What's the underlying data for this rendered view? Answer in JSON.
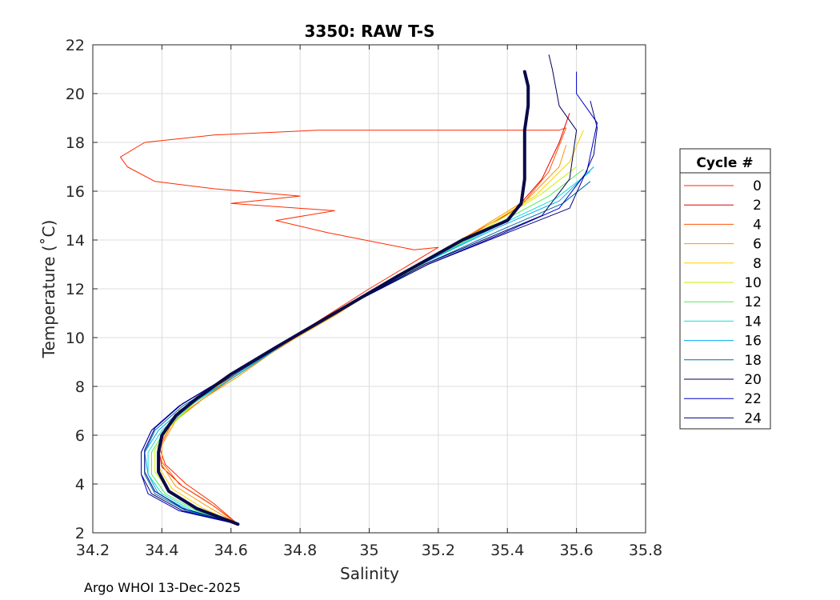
{
  "chart_data": {
    "type": "line",
    "title": "3350: RAW T-S",
    "xlabel": "Salinity",
    "ylabel": "Temperature (˚C)",
    "xlim": [
      34.2,
      35.8
    ],
    "ylim": [
      2,
      22
    ],
    "xticks": [
      "34.2",
      "34.4",
      "34.6",
      "34.8",
      "35",
      "35.2",
      "35.4",
      "35.6",
      "35.8"
    ],
    "yticks": [
      "2",
      "4",
      "6",
      "8",
      "10",
      "12",
      "14",
      "16",
      "18",
      "20",
      "22"
    ],
    "grid": true,
    "legend_title": "Cycle #",
    "legend_position": "right outside",
    "series": [
      {
        "name": "0",
        "color": "#ff2a00",
        "points": [
          [
            34.62,
            2.35
          ],
          [
            34.55,
            3.2
          ],
          [
            34.47,
            4.0
          ],
          [
            34.41,
            4.8
          ],
          [
            34.39,
            5.6
          ],
          [
            34.41,
            6.3
          ],
          [
            34.45,
            7.0
          ],
          [
            34.55,
            8.0
          ],
          [
            34.66,
            9.0
          ],
          [
            34.8,
            10.2
          ],
          [
            35.0,
            12.0
          ],
          [
            35.2,
            13.7
          ],
          [
            35.13,
            13.6
          ],
          [
            34.88,
            14.3
          ],
          [
            34.73,
            14.8
          ],
          [
            34.9,
            15.2
          ],
          [
            34.6,
            15.5
          ],
          [
            34.8,
            15.8
          ],
          [
            34.55,
            16.1
          ],
          [
            34.38,
            16.4
          ],
          [
            34.3,
            17.0
          ],
          [
            34.28,
            17.4
          ],
          [
            34.35,
            18.0
          ],
          [
            34.55,
            18.3
          ],
          [
            34.85,
            18.5
          ],
          [
            35.55,
            18.5
          ],
          [
            35.57,
            18.6
          ]
        ]
      },
      {
        "name": "2",
        "color": "#e60000",
        "points": [
          [
            34.62,
            2.35
          ],
          [
            34.55,
            3.1
          ],
          [
            34.46,
            3.9
          ],
          [
            34.4,
            4.7
          ],
          [
            34.39,
            5.5
          ],
          [
            34.42,
            6.4
          ],
          [
            34.47,
            7.1
          ],
          [
            34.57,
            8.1
          ],
          [
            34.7,
            9.3
          ],
          [
            34.85,
            10.6
          ],
          [
            35.05,
            12.3
          ],
          [
            35.25,
            13.9
          ],
          [
            35.42,
            15.2
          ],
          [
            35.5,
            16.5
          ],
          [
            35.55,
            18.0
          ],
          [
            35.58,
            19.2
          ]
        ]
      },
      {
        "name": "4",
        "color": "#ff5500",
        "points": [
          [
            34.62,
            2.35
          ],
          [
            34.54,
            3.2
          ],
          [
            34.45,
            4.0
          ],
          [
            34.4,
            4.9
          ],
          [
            34.4,
            5.7
          ],
          [
            34.43,
            6.5
          ],
          [
            34.5,
            7.3
          ],
          [
            34.6,
            8.3
          ],
          [
            34.72,
            9.4
          ],
          [
            34.88,
            10.8
          ],
          [
            35.08,
            12.5
          ],
          [
            35.28,
            14.1
          ],
          [
            35.44,
            15.4
          ],
          [
            35.52,
            16.8
          ],
          [
            35.57,
            18.6
          ]
        ]
      },
      {
        "name": "6",
        "color": "#ff9500",
        "points": [
          [
            34.62,
            2.35
          ],
          [
            34.53,
            3.1
          ],
          [
            34.44,
            3.9
          ],
          [
            34.4,
            4.8
          ],
          [
            34.4,
            5.6
          ],
          [
            34.44,
            6.6
          ],
          [
            34.52,
            7.5
          ],
          [
            34.62,
            8.4
          ],
          [
            34.74,
            9.6
          ],
          [
            34.9,
            10.9
          ],
          [
            35.1,
            12.7
          ],
          [
            35.3,
            14.3
          ],
          [
            35.46,
            15.7
          ],
          [
            35.55,
            17.0
          ],
          [
            35.57,
            17.9
          ]
        ]
      },
      {
        "name": "8",
        "color": "#ffd000",
        "points": [
          [
            34.62,
            2.35
          ],
          [
            34.52,
            3.0
          ],
          [
            34.43,
            3.8
          ],
          [
            34.39,
            4.7
          ],
          [
            34.39,
            5.5
          ],
          [
            34.42,
            6.5
          ],
          [
            34.5,
            7.5
          ],
          [
            34.62,
            8.5
          ],
          [
            34.75,
            9.7
          ],
          [
            34.92,
            11.1
          ],
          [
            35.12,
            12.8
          ],
          [
            35.32,
            14.4
          ],
          [
            35.48,
            15.8
          ],
          [
            35.58,
            17.2
          ],
          [
            35.62,
            18.5
          ]
        ]
      },
      {
        "name": "10",
        "color": "#c8f000",
        "points": [
          [
            34.62,
            2.35
          ],
          [
            34.5,
            3.0
          ],
          [
            34.42,
            3.7
          ],
          [
            34.38,
            4.5
          ],
          [
            34.38,
            5.4
          ],
          [
            34.42,
            6.3
          ],
          [
            34.5,
            7.4
          ],
          [
            34.62,
            8.5
          ],
          [
            34.76,
            9.8
          ],
          [
            34.94,
            11.3
          ],
          [
            35.14,
            12.9
          ],
          [
            35.34,
            14.5
          ],
          [
            35.5,
            15.9
          ],
          [
            35.6,
            17.0
          ]
        ]
      },
      {
        "name": "12",
        "color": "#5ae65a",
        "points": [
          [
            34.62,
            2.35
          ],
          [
            34.5,
            2.9
          ],
          [
            34.41,
            3.6
          ],
          [
            34.37,
            4.4
          ],
          [
            34.37,
            5.3
          ],
          [
            34.41,
            6.2
          ],
          [
            34.49,
            7.3
          ],
          [
            34.61,
            8.4
          ],
          [
            34.76,
            9.8
          ],
          [
            34.94,
            11.3
          ],
          [
            35.14,
            12.9
          ],
          [
            35.35,
            14.5
          ],
          [
            35.52,
            15.8
          ],
          [
            35.62,
            16.9
          ]
        ]
      },
      {
        "name": "14",
        "color": "#10e0d8",
        "points": [
          [
            34.62,
            2.35
          ],
          [
            34.49,
            2.9
          ],
          [
            34.4,
            3.6
          ],
          [
            34.36,
            4.4
          ],
          [
            34.36,
            5.3
          ],
          [
            34.4,
            6.2
          ],
          [
            34.48,
            7.2
          ],
          [
            34.6,
            8.3
          ],
          [
            34.76,
            9.8
          ],
          [
            34.95,
            11.4
          ],
          [
            35.15,
            13.0
          ],
          [
            35.36,
            14.5
          ],
          [
            35.54,
            15.7
          ],
          [
            35.64,
            16.8
          ]
        ]
      },
      {
        "name": "16",
        "color": "#00a8f0",
        "points": [
          [
            34.62,
            2.35
          ],
          [
            34.48,
            2.9
          ],
          [
            34.39,
            3.6
          ],
          [
            34.36,
            4.4
          ],
          [
            34.35,
            5.3
          ],
          [
            34.39,
            6.2
          ],
          [
            34.47,
            7.2
          ],
          [
            34.6,
            8.3
          ],
          [
            34.76,
            9.8
          ],
          [
            34.95,
            11.4
          ],
          [
            35.15,
            13.0
          ],
          [
            35.37,
            14.5
          ],
          [
            35.55,
            15.6
          ],
          [
            35.65,
            17.0
          ]
        ]
      },
      {
        "name": "18",
        "color": "#006aa8",
        "points": [
          [
            34.62,
            2.35
          ],
          [
            34.47,
            2.9
          ],
          [
            34.38,
            3.6
          ],
          [
            34.35,
            4.4
          ],
          [
            34.35,
            5.3
          ],
          [
            34.38,
            6.2
          ],
          [
            34.46,
            7.2
          ],
          [
            34.59,
            8.3
          ],
          [
            34.76,
            9.8
          ],
          [
            34.95,
            11.4
          ],
          [
            35.16,
            13.0
          ],
          [
            35.38,
            14.4
          ],
          [
            35.56,
            15.5
          ],
          [
            35.64,
            16.4
          ]
        ]
      },
      {
        "name": "20",
        "color": "#00005a",
        "points": [
          [
            34.62,
            2.35
          ],
          [
            34.46,
            2.9
          ],
          [
            34.37,
            3.6
          ],
          [
            34.34,
            4.4
          ],
          [
            34.34,
            5.3
          ],
          [
            34.37,
            6.2
          ],
          [
            34.45,
            7.2
          ],
          [
            34.58,
            8.3
          ],
          [
            34.76,
            9.8
          ],
          [
            34.95,
            11.4
          ],
          [
            35.16,
            13.0
          ],
          [
            35.38,
            14.3
          ],
          [
            35.5,
            15.0
          ],
          [
            35.58,
            16.5
          ],
          [
            35.6,
            18.5
          ],
          [
            35.55,
            19.5
          ],
          [
            35.53,
            21.0
          ],
          [
            35.52,
            21.6
          ]
        ]
      },
      {
        "name": "22",
        "color": "#0000c8",
        "points": [
          [
            34.62,
            2.35
          ],
          [
            34.45,
            2.9
          ],
          [
            34.36,
            3.6
          ],
          [
            34.34,
            4.4
          ],
          [
            34.34,
            5.3
          ],
          [
            34.37,
            6.2
          ],
          [
            34.45,
            7.2
          ],
          [
            34.58,
            8.3
          ],
          [
            34.76,
            9.8
          ],
          [
            34.95,
            11.4
          ],
          [
            35.17,
            13.0
          ],
          [
            35.39,
            14.3
          ],
          [
            35.55,
            15.3
          ],
          [
            35.63,
            16.8
          ],
          [
            35.66,
            18.8
          ],
          [
            35.6,
            20.0
          ],
          [
            35.6,
            20.9
          ]
        ]
      },
      {
        "name": "24",
        "color": "#000080",
        "points": [
          [
            34.62,
            2.35
          ],
          [
            34.46,
            3.0
          ],
          [
            34.38,
            3.7
          ],
          [
            34.35,
            4.5
          ],
          [
            34.35,
            5.4
          ],
          [
            34.38,
            6.3
          ],
          [
            34.46,
            7.3
          ],
          [
            34.59,
            8.4
          ],
          [
            34.76,
            9.8
          ],
          [
            34.95,
            11.4
          ],
          [
            35.17,
            13.0
          ],
          [
            35.4,
            14.3
          ],
          [
            35.58,
            15.3
          ],
          [
            35.65,
            17.5
          ],
          [
            35.66,
            18.6
          ],
          [
            35.64,
            19.7
          ]
        ]
      }
    ],
    "highlight_series": {
      "color": "#0a0a4a",
      "points": [
        [
          34.62,
          2.35
        ],
        [
          34.5,
          3.0
        ],
        [
          34.42,
          3.7
        ],
        [
          34.39,
          4.5
        ],
        [
          34.39,
          5.3
        ],
        [
          34.4,
          6.0
        ],
        [
          34.44,
          6.8
        ],
        [
          34.5,
          7.5
        ],
        [
          34.6,
          8.5
        ],
        [
          34.73,
          9.6
        ],
        [
          34.9,
          11.0
        ],
        [
          35.08,
          12.5
        ],
        [
          35.27,
          14.0
        ],
        [
          35.4,
          14.8
        ],
        [
          35.44,
          15.5
        ],
        [
          35.45,
          16.5
        ],
        [
          35.45,
          17.5
        ],
        [
          35.45,
          18.5
        ],
        [
          35.46,
          19.5
        ],
        [
          35.46,
          20.3
        ],
        [
          35.45,
          20.9
        ]
      ]
    }
  },
  "footer": "Argo WHOI 13-Dec-2025"
}
